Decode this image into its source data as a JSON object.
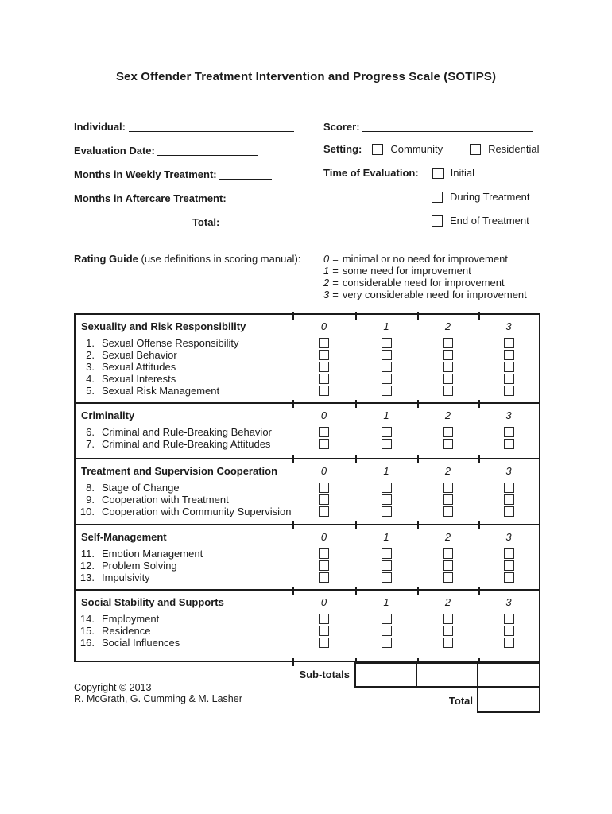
{
  "title": "Sex Offender Treatment Intervention and Progress Scale (SOTIPS)",
  "fields": {
    "individual_label": "Individual:",
    "scorer_label": "Scorer:",
    "evaluation_date_label": "Evaluation Date:",
    "setting_label": "Setting:",
    "setting_options": [
      "Community",
      "Residential"
    ],
    "months_weekly_label": "Months in Weekly Treatment:",
    "time_of_evaluation_label": "Time of Evaluation:",
    "time_options": [
      "Initial",
      "During Treatment",
      "End of Treatment"
    ],
    "months_aftercare_label": "Months in Aftercare Treatment:",
    "total_label": "Total:"
  },
  "rating_guide": {
    "label_bold": "Rating Guide",
    "label_rest": " (use definitions in scoring manual):",
    "eq": "=",
    "levels": [
      {
        "value": "0",
        "text": "minimal or no need for improvement"
      },
      {
        "value": "1",
        "text": "some need for improvement"
      },
      {
        "value": "2",
        "text": "considerable need for improvement"
      },
      {
        "value": "3",
        "text": "very considerable need for improvement"
      }
    ]
  },
  "table": {
    "rating_columns": [
      "0",
      "1",
      "2",
      "3"
    ],
    "sections": [
      {
        "title": "Sexuality and Risk Responsibility",
        "items": [
          {
            "num": "1.",
            "label": "Sexual Offense Responsibility"
          },
          {
            "num": "2.",
            "label": "Sexual Behavior"
          },
          {
            "num": "3.",
            "label": "Sexual Attitudes"
          },
          {
            "num": "4.",
            "label": "Sexual Interests"
          },
          {
            "num": "5.",
            "label": "Sexual Risk Management"
          }
        ]
      },
      {
        "title": "Criminality",
        "items": [
          {
            "num": "6.",
            "label": "Criminal and Rule-Breaking Behavior"
          },
          {
            "num": "7.",
            "label": "Criminal and Rule-Breaking Attitudes"
          }
        ]
      },
      {
        "title": "Treatment and Supervision Cooperation",
        "items": [
          {
            "num": "8.",
            "label": "Stage of Change"
          },
          {
            "num": "9.",
            "label": "Cooperation with Treatment"
          },
          {
            "num": "10.",
            "label": "Cooperation with Community Supervision"
          }
        ]
      },
      {
        "title": "Self-Management",
        "items": [
          {
            "num": "11.",
            "label": "Emotion Management"
          },
          {
            "num": "12.",
            "label": "Problem Solving"
          },
          {
            "num": "13.",
            "label": "Impulsivity"
          }
        ]
      },
      {
        "title": "Social Stability and Supports",
        "items": [
          {
            "num": "14.",
            "label": "Employment"
          },
          {
            "num": "15.",
            "label": "Residence"
          },
          {
            "num": "16.",
            "label": "Social Influences"
          }
        ]
      }
    ],
    "subtotals_label": "Sub-totals",
    "total_label": "Total"
  },
  "footer": {
    "copyright_line1": "Copyright © 2013",
    "copyright_line2": "R. McGrath, G. Cumming & M. Lasher"
  }
}
